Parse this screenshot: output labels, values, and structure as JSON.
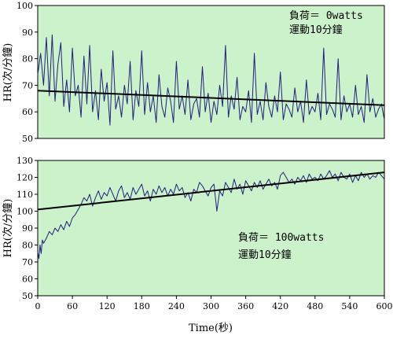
{
  "chart_data": [
    {
      "type": "line",
      "ylabel": "HR(次/分鐘)",
      "xlabel": "",
      "xlim": [
        0,
        600
      ],
      "ylim": [
        50,
        100
      ],
      "yticks": [
        50,
        60,
        70,
        80,
        90,
        100
      ],
      "yticklabels": [
        "50",
        "60",
        "70",
        "80",
        "90",
        "100"
      ],
      "xticklabels": [],
      "annotation": [
        "負荷＝ 0watts",
        "運動10分鐘"
      ],
      "annotation_position": "top-right",
      "grid": false,
      "background_color": "#ccf2cc",
      "series": [
        {
          "kind": "raw",
          "color": "#1f1f7a",
          "x": [
            0,
            5,
            10,
            15,
            20,
            25,
            30,
            35,
            40,
            45,
            50,
            55,
            60,
            65,
            70,
            75,
            80,
            85,
            90,
            95,
            100,
            105,
            110,
            115,
            120,
            125,
            130,
            135,
            140,
            145,
            150,
            155,
            160,
            165,
            170,
            175,
            180,
            185,
            190,
            195,
            200,
            205,
            210,
            215,
            220,
            225,
            230,
            235,
            240,
            245,
            250,
            255,
            260,
            265,
            270,
            275,
            280,
            285,
            290,
            295,
            300,
            305,
            310,
            315,
            320,
            325,
            330,
            335,
            340,
            345,
            350,
            355,
            360,
            365,
            370,
            375,
            380,
            385,
            390,
            395,
            400,
            405,
            410,
            415,
            420,
            425,
            430,
            435,
            440,
            445,
            450,
            455,
            460,
            465,
            470,
            475,
            480,
            485,
            490,
            495,
            500,
            505,
            510,
            515,
            520,
            525,
            530,
            535,
            540,
            545,
            550,
            555,
            560,
            565,
            570,
            575,
            580,
            585,
            590,
            595,
            600
          ],
          "y": [
            74,
            82,
            70,
            88,
            66,
            89,
            64,
            78,
            86,
            62,
            72,
            60,
            84,
            66,
            70,
            58,
            81,
            63,
            85,
            60,
            68,
            57,
            76,
            64,
            71,
            55,
            83,
            61,
            66,
            58,
            70,
            63,
            79,
            57,
            68,
            62,
            83,
            59,
            71,
            60,
            66,
            56,
            74,
            62,
            58,
            69,
            64,
            56,
            79,
            61,
            66,
            59,
            72,
            57,
            63,
            65,
            58,
            77,
            60,
            67,
            56,
            64,
            59,
            70,
            62,
            85,
            58,
            66,
            61,
            73,
            57,
            62,
            60,
            68,
            56,
            82,
            59,
            64,
            57,
            71,
            62,
            58,
            66,
            60,
            75,
            57,
            63,
            61,
            58,
            69,
            60,
            64,
            56,
            72,
            59,
            62,
            60,
            67,
            57,
            84,
            59,
            63,
            61,
            58,
            80,
            57,
            66,
            60,
            63,
            58,
            70,
            59,
            62,
            56,
            74,
            60,
            65,
            58,
            61,
            63,
            57
          ]
        },
        {
          "kind": "trend",
          "color": "#000000",
          "x": [
            0,
            600
          ],
          "y": [
            68,
            62.5
          ]
        }
      ]
    },
    {
      "type": "line",
      "ylabel": "HR(次/分鐘)",
      "xlabel": "Time(秒)",
      "xlim": [
        0,
        600
      ],
      "ylim": [
        50,
        130
      ],
      "yticks": [
        50,
        60,
        70,
        80,
        90,
        100,
        110,
        120,
        130
      ],
      "yticklabels": [
        "50",
        "60",
        "70",
        "80",
        "90",
        "100",
        "110",
        "120",
        "130"
      ],
      "xticks": [
        0,
        60,
        120,
        180,
        240,
        300,
        360,
        420,
        480,
        540,
        600
      ],
      "xticklabels": [
        "0",
        "60",
        "120",
        "180",
        "240",
        "300",
        "360",
        "420",
        "480",
        "540",
        "600"
      ],
      "annotation": [
        "負荷＝ 100watts",
        "運動10分鐘"
      ],
      "annotation_position": "center",
      "grid": false,
      "background_color": "#ccf2cc",
      "series": [
        {
          "kind": "raw",
          "color": "#1f1f7a",
          "x": [
            0,
            2,
            4,
            6,
            8,
            10,
            15,
            20,
            25,
            30,
            35,
            40,
            45,
            50,
            55,
            60,
            65,
            70,
            75,
            80,
            85,
            90,
            95,
            100,
            105,
            110,
            115,
            120,
            125,
            130,
            135,
            140,
            145,
            150,
            155,
            160,
            165,
            170,
            175,
            180,
            185,
            190,
            195,
            200,
            205,
            210,
            215,
            220,
            225,
            230,
            235,
            240,
            245,
            250,
            255,
            260,
            265,
            270,
            275,
            280,
            285,
            290,
            295,
            300,
            305,
            310,
            315,
            320,
            325,
            330,
            335,
            340,
            345,
            350,
            355,
            360,
            365,
            370,
            375,
            380,
            385,
            390,
            395,
            400,
            405,
            410,
            415,
            420,
            425,
            430,
            435,
            440,
            445,
            450,
            455,
            460,
            465,
            470,
            475,
            480,
            485,
            490,
            495,
            500,
            505,
            510,
            515,
            520,
            525,
            530,
            535,
            540,
            545,
            550,
            555,
            560,
            565,
            570,
            575,
            580,
            585,
            590,
            595,
            600
          ],
          "y": [
            76,
            72,
            80,
            75,
            83,
            81,
            84,
            88,
            86,
            90,
            88,
            92,
            89,
            94,
            91,
            96,
            98,
            101,
            104,
            108,
            106,
            110,
            103,
            108,
            112,
            107,
            111,
            109,
            114,
            110,
            106,
            112,
            115,
            108,
            111,
            107,
            114,
            110,
            113,
            116,
            109,
            112,
            106,
            113,
            110,
            115,
            111,
            114,
            109,
            113,
            110,
            116,
            112,
            114,
            108,
            111,
            106,
            113,
            111,
            117,
            115,
            112,
            109,
            114,
            116,
            100,
            112,
            109,
            117,
            114,
            111,
            119,
            113,
            116,
            110,
            118,
            115,
            112,
            117,
            114,
            118,
            113,
            116,
            119,
            115,
            117,
            113,
            121,
            123,
            120,
            117,
            119,
            116,
            120,
            118,
            121,
            117,
            122,
            119,
            120,
            118,
            122,
            119,
            121,
            124,
            120,
            122,
            118,
            123,
            120,
            119,
            122,
            117,
            121,
            118,
            123,
            120,
            122,
            119,
            121,
            120,
            123,
            121,
            119
          ]
        },
        {
          "kind": "trend",
          "color": "#000000",
          "x": [
            0,
            600
          ],
          "y": [
            101,
            123
          ]
        }
      ]
    }
  ]
}
